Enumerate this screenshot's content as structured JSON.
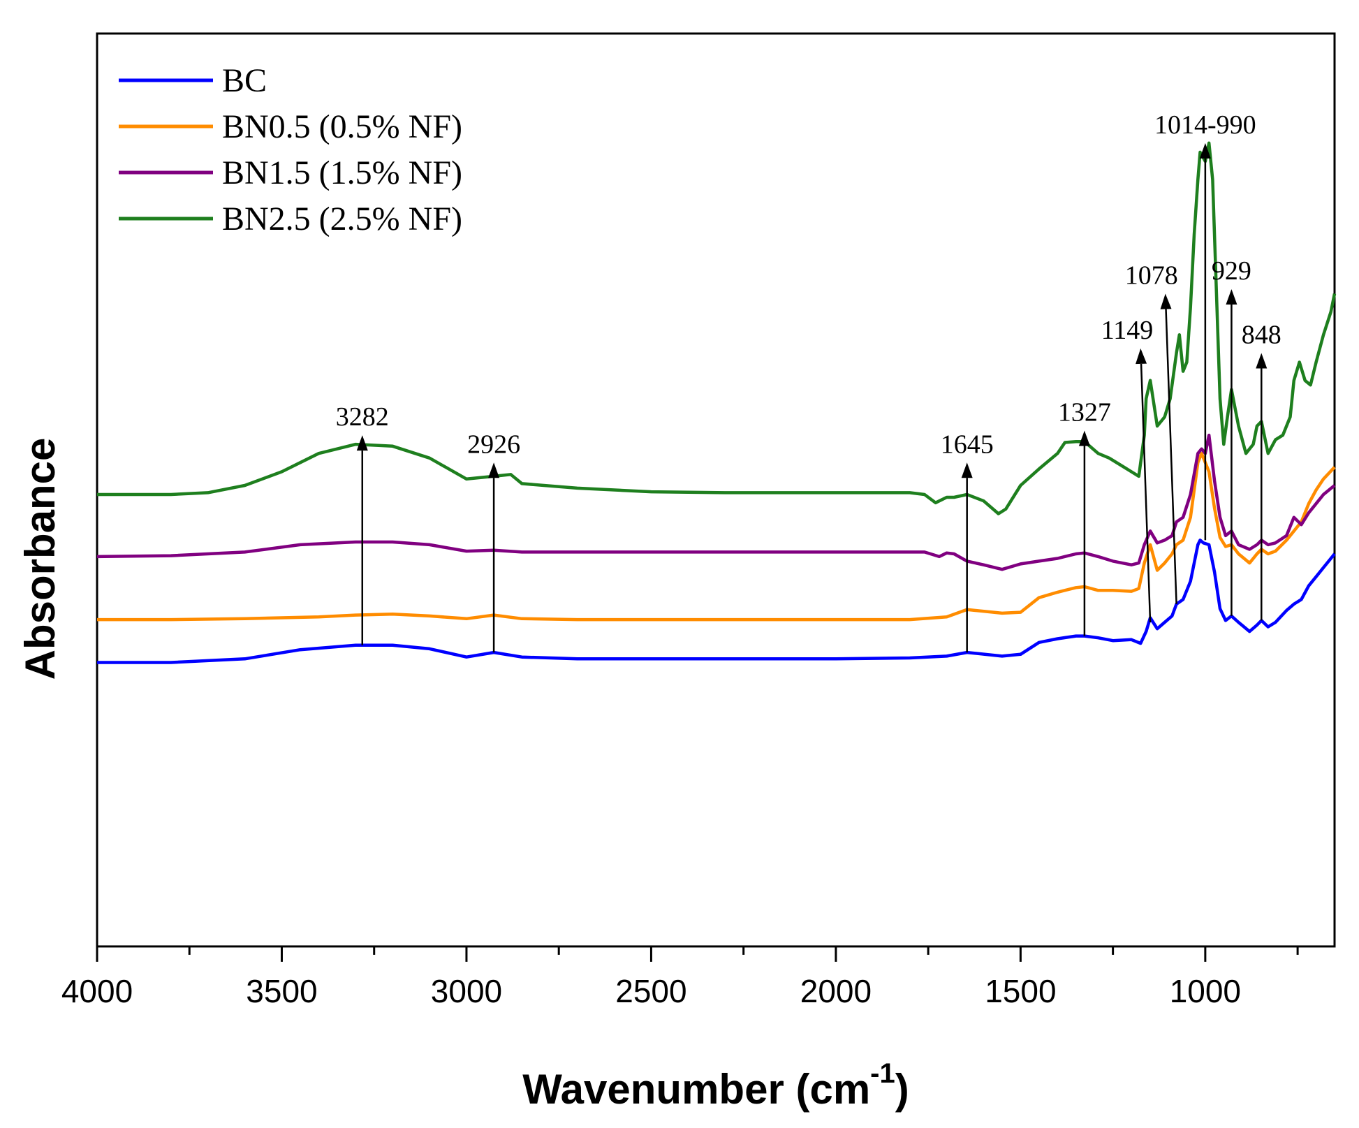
{
  "chart_data": {
    "type": "line",
    "title": "",
    "xlabel": "Wavenumber (cm",
    "xlabel_superscript": "-1",
    "xlabel_close": ")",
    "ylabel": "Absorbance",
    "xlim": [
      4000,
      650
    ],
    "ylim": [
      0,
      1
    ],
    "x_ticks": [
      4000,
      3500,
      3000,
      2500,
      2000,
      1500,
      1000
    ],
    "x_tick_labels": [
      "4000",
      "3500",
      "3000",
      "2500",
      "2000",
      "1500",
      "1000"
    ],
    "legend_position": "top-left",
    "series": [
      {
        "name": "BC",
        "color": "#0000ff",
        "points": [
          [
            4000,
            0.311
          ],
          [
            3800,
            0.311
          ],
          [
            3600,
            0.315
          ],
          [
            3450,
            0.325
          ],
          [
            3300,
            0.33
          ],
          [
            3200,
            0.33
          ],
          [
            3100,
            0.326
          ],
          [
            3000,
            0.317
          ],
          [
            2926,
            0.322
          ],
          [
            2850,
            0.317
          ],
          [
            2700,
            0.315
          ],
          [
            2500,
            0.315
          ],
          [
            2000,
            0.315
          ],
          [
            1800,
            0.316
          ],
          [
            1700,
            0.318
          ],
          [
            1645,
            0.322
          ],
          [
            1550,
            0.318
          ],
          [
            1500,
            0.32
          ],
          [
            1450,
            0.333
          ],
          [
            1400,
            0.337
          ],
          [
            1350,
            0.34
          ],
          [
            1327,
            0.34
          ],
          [
            1290,
            0.338
          ],
          [
            1250,
            0.335
          ],
          [
            1200,
            0.336
          ],
          [
            1175,
            0.332
          ],
          [
            1160,
            0.345
          ],
          [
            1149,
            0.36
          ],
          [
            1130,
            0.348
          ],
          [
            1110,
            0.355
          ],
          [
            1090,
            0.362
          ],
          [
            1078,
            0.375
          ],
          [
            1060,
            0.38
          ],
          [
            1040,
            0.4
          ],
          [
            1020,
            0.44
          ],
          [
            1014,
            0.445
          ],
          [
            1005,
            0.442
          ],
          [
            990,
            0.44
          ],
          [
            975,
            0.41
          ],
          [
            960,
            0.37
          ],
          [
            945,
            0.357
          ],
          [
            929,
            0.362
          ],
          [
            910,
            0.355
          ],
          [
            880,
            0.345
          ],
          [
            860,
            0.352
          ],
          [
            848,
            0.357
          ],
          [
            830,
            0.35
          ],
          [
            810,
            0.355
          ],
          [
            780,
            0.368
          ],
          [
            760,
            0.375
          ],
          [
            740,
            0.38
          ],
          [
            720,
            0.395
          ],
          [
            700,
            0.405
          ],
          [
            680,
            0.415
          ],
          [
            650,
            0.43
          ]
        ]
      },
      {
        "name": "BN0.5 (0.5% NF)",
        "color": "#ff8c00",
        "points": [
          [
            4000,
            0.358
          ],
          [
            3800,
            0.358
          ],
          [
            3600,
            0.359
          ],
          [
            3400,
            0.361
          ],
          [
            3300,
            0.363
          ],
          [
            3200,
            0.364
          ],
          [
            3100,
            0.362
          ],
          [
            3000,
            0.359
          ],
          [
            2926,
            0.363
          ],
          [
            2850,
            0.359
          ],
          [
            2700,
            0.358
          ],
          [
            2500,
            0.358
          ],
          [
            2000,
            0.358
          ],
          [
            1800,
            0.358
          ],
          [
            1700,
            0.361
          ],
          [
            1645,
            0.369
          ],
          [
            1550,
            0.365
          ],
          [
            1500,
            0.366
          ],
          [
            1450,
            0.382
          ],
          [
            1400,
            0.388
          ],
          [
            1350,
            0.393
          ],
          [
            1327,
            0.394
          ],
          [
            1290,
            0.39
          ],
          [
            1250,
            0.39
          ],
          [
            1200,
            0.389
          ],
          [
            1180,
            0.392
          ],
          [
            1165,
            0.42
          ],
          [
            1149,
            0.44
          ],
          [
            1130,
            0.412
          ],
          [
            1110,
            0.42
          ],
          [
            1090,
            0.43
          ],
          [
            1078,
            0.44
          ],
          [
            1060,
            0.445
          ],
          [
            1040,
            0.47
          ],
          [
            1020,
            0.53
          ],
          [
            1010,
            0.54
          ],
          [
            1000,
            0.53
          ],
          [
            990,
            0.52
          ],
          [
            975,
            0.48
          ],
          [
            960,
            0.448
          ],
          [
            945,
            0.438
          ],
          [
            929,
            0.44
          ],
          [
            910,
            0.43
          ],
          [
            880,
            0.42
          ],
          [
            860,
            0.43
          ],
          [
            848,
            0.435
          ],
          [
            830,
            0.43
          ],
          [
            810,
            0.433
          ],
          [
            780,
            0.445
          ],
          [
            760,
            0.455
          ],
          [
            740,
            0.465
          ],
          [
            720,
            0.485
          ],
          [
            700,
            0.5
          ],
          [
            680,
            0.512
          ],
          [
            650,
            0.525
          ]
        ]
      },
      {
        "name": "BN1.5 (1.5% NF)",
        "color": "#800080",
        "points": [
          [
            4000,
            0.427
          ],
          [
            3800,
            0.428
          ],
          [
            3600,
            0.432
          ],
          [
            3450,
            0.44
          ],
          [
            3300,
            0.443
          ],
          [
            3200,
            0.443
          ],
          [
            3100,
            0.44
          ],
          [
            3000,
            0.433
          ],
          [
            2926,
            0.434
          ],
          [
            2850,
            0.432
          ],
          [
            2700,
            0.432
          ],
          [
            2500,
            0.432
          ],
          [
            2000,
            0.432
          ],
          [
            1800,
            0.432
          ],
          [
            1760,
            0.432
          ],
          [
            1720,
            0.427
          ],
          [
            1700,
            0.431
          ],
          [
            1680,
            0.43
          ],
          [
            1645,
            0.422
          ],
          [
            1600,
            0.418
          ],
          [
            1550,
            0.413
          ],
          [
            1500,
            0.419
          ],
          [
            1450,
            0.422
          ],
          [
            1400,
            0.425
          ],
          [
            1350,
            0.43
          ],
          [
            1327,
            0.431
          ],
          [
            1290,
            0.427
          ],
          [
            1250,
            0.422
          ],
          [
            1200,
            0.418
          ],
          [
            1180,
            0.42
          ],
          [
            1165,
            0.44
          ],
          [
            1149,
            0.455
          ],
          [
            1130,
            0.442
          ],
          [
            1110,
            0.445
          ],
          [
            1090,
            0.45
          ],
          [
            1078,
            0.465
          ],
          [
            1060,
            0.47
          ],
          [
            1040,
            0.495
          ],
          [
            1020,
            0.54
          ],
          [
            1010,
            0.545
          ],
          [
            1000,
            0.54
          ],
          [
            990,
            0.56
          ],
          [
            975,
            0.51
          ],
          [
            960,
            0.47
          ],
          [
            945,
            0.45
          ],
          [
            929,
            0.455
          ],
          [
            910,
            0.44
          ],
          [
            880,
            0.435
          ],
          [
            860,
            0.44
          ],
          [
            848,
            0.445
          ],
          [
            830,
            0.44
          ],
          [
            810,
            0.442
          ],
          [
            780,
            0.45
          ],
          [
            760,
            0.47
          ],
          [
            740,
            0.462
          ],
          [
            720,
            0.475
          ],
          [
            700,
            0.485
          ],
          [
            680,
            0.495
          ],
          [
            650,
            0.505
          ]
        ]
      },
      {
        "name": "BN2.5 (2.5% NF)",
        "color": "#1e7f1e",
        "points": [
          [
            4000,
            0.495
          ],
          [
            3800,
            0.495
          ],
          [
            3700,
            0.497
          ],
          [
            3600,
            0.505
          ],
          [
            3500,
            0.52
          ],
          [
            3400,
            0.54
          ],
          [
            3300,
            0.55
          ],
          [
            3200,
            0.548
          ],
          [
            3100,
            0.535
          ],
          [
            3000,
            0.512
          ],
          [
            2926,
            0.515
          ],
          [
            2880,
            0.517
          ],
          [
            2850,
            0.507
          ],
          [
            2700,
            0.502
          ],
          [
            2500,
            0.498
          ],
          [
            2300,
            0.497
          ],
          [
            2000,
            0.497
          ],
          [
            1800,
            0.497
          ],
          [
            1760,
            0.495
          ],
          [
            1730,
            0.486
          ],
          [
            1700,
            0.492
          ],
          [
            1680,
            0.492
          ],
          [
            1645,
            0.495
          ],
          [
            1600,
            0.488
          ],
          [
            1560,
            0.474
          ],
          [
            1540,
            0.479
          ],
          [
            1500,
            0.505
          ],
          [
            1450,
            0.523
          ],
          [
            1400,
            0.54
          ],
          [
            1380,
            0.552
          ],
          [
            1350,
            0.553
          ],
          [
            1327,
            0.553
          ],
          [
            1290,
            0.54
          ],
          [
            1260,
            0.535
          ],
          [
            1240,
            0.53
          ],
          [
            1220,
            0.525
          ],
          [
            1200,
            0.52
          ],
          [
            1180,
            0.515
          ],
          [
            1165,
            0.56
          ],
          [
            1160,
            0.6
          ],
          [
            1149,
            0.62
          ],
          [
            1130,
            0.57
          ],
          [
            1110,
            0.58
          ],
          [
            1095,
            0.6
          ],
          [
            1078,
            0.65
          ],
          [
            1070,
            0.67
          ],
          [
            1060,
            0.63
          ],
          [
            1050,
            0.64
          ],
          [
            1040,
            0.7
          ],
          [
            1030,
            0.78
          ],
          [
            1020,
            0.84
          ],
          [
            1014,
            0.87
          ],
          [
            1000,
            0.86
          ],
          [
            990,
            0.88
          ],
          [
            980,
            0.84
          ],
          [
            970,
            0.72
          ],
          [
            960,
            0.6
          ],
          [
            950,
            0.55
          ],
          [
            940,
            0.58
          ],
          [
            929,
            0.61
          ],
          [
            910,
            0.57
          ],
          [
            890,
            0.54
          ],
          [
            870,
            0.55
          ],
          [
            860,
            0.57
          ],
          [
            848,
            0.575
          ],
          [
            830,
            0.54
          ],
          [
            810,
            0.555
          ],
          [
            790,
            0.56
          ],
          [
            770,
            0.58
          ],
          [
            760,
            0.62
          ],
          [
            745,
            0.64
          ],
          [
            730,
            0.62
          ],
          [
            715,
            0.615
          ],
          [
            700,
            0.64
          ],
          [
            680,
            0.67
          ],
          [
            660,
            0.695
          ],
          [
            650,
            0.715
          ]
        ]
      }
    ],
    "annotations": [
      {
        "label": "3282",
        "x": 3282,
        "y_from": 0.33,
        "y_to": 0.56
      },
      {
        "label": "2926",
        "x": 2926,
        "y_from": 0.322,
        "y_to": 0.53
      },
      {
        "label": "1645",
        "x": 1645,
        "y_from": 0.322,
        "y_to": 0.53
      },
      {
        "label": "1327",
        "x": 1327,
        "y_from": 0.34,
        "y_to": 0.565
      },
      {
        "label": "1149",
        "x_from": 1149,
        "y_from": 0.355,
        "x": 1175,
        "y_to": 0.655
      },
      {
        "label": "1078",
        "x_from": 1078,
        "y_from": 0.375,
        "x": 1108,
        "y_to": 0.715
      },
      {
        "label": "1014-990",
        "x": 1000,
        "y_from": 0.445,
        "y_to": 0.88
      },
      {
        "label": "929",
        "x": 929,
        "y_from": 0.362,
        "y_to": 0.72
      },
      {
        "label": "848",
        "x": 848,
        "y_from": 0.357,
        "y_to": 0.65
      }
    ]
  }
}
